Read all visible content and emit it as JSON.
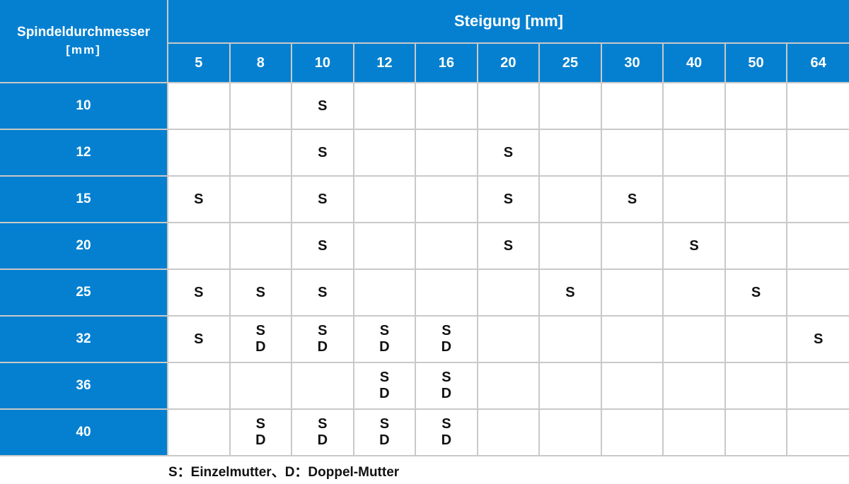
{
  "chart_data": {
    "type": "table",
    "col_group_title": "Steigung [mm]",
    "row_header_line1": "Spindeldurchmesser",
    "row_header_line2": "[mm]",
    "columns": [
      "5",
      "8",
      "10",
      "12",
      "16",
      "20",
      "25",
      "30",
      "40",
      "50",
      "64"
    ],
    "rows": [
      {
        "label": "10",
        "cells": [
          "",
          "",
          "S",
          "",
          "",
          "",
          "",
          "",
          "",
          "",
          ""
        ]
      },
      {
        "label": "12",
        "cells": [
          "",
          "",
          "S",
          "",
          "",
          "S",
          "",
          "",
          "",
          "",
          ""
        ]
      },
      {
        "label": "15",
        "cells": [
          "S",
          "",
          "S",
          "",
          "",
          "S",
          "",
          "S",
          "",
          "",
          ""
        ]
      },
      {
        "label": "20",
        "cells": [
          "",
          "",
          "S",
          "",
          "",
          "S",
          "",
          "",
          "S",
          "",
          ""
        ]
      },
      {
        "label": "25",
        "cells": [
          "S",
          "S",
          "S",
          "",
          "",
          "",
          "S",
          "",
          "",
          "S",
          ""
        ]
      },
      {
        "label": "32",
        "cells": [
          "S",
          "S\nD",
          "S\nD",
          "S\nD",
          "S\nD",
          "",
          "",
          "",
          "",
          "",
          "S"
        ]
      },
      {
        "label": "36",
        "cells": [
          "",
          "",
          "",
          "S\nD",
          "S\nD",
          "",
          "",
          "",
          "",
          "",
          ""
        ]
      },
      {
        "label": "40",
        "cells": [
          "",
          "S\nD",
          "S\nD",
          "S\nD",
          "S\nD",
          "",
          "",
          "",
          "",
          "",
          ""
        ]
      }
    ],
    "legend": "S：Einzelmutter、D：Doppel-Mutter",
    "legend_position": "bottom-left",
    "cell_codes": {
      "S": "Einzelmutter",
      "D": "Doppel-Mutter"
    }
  },
  "colors": {
    "header_blue": "#0580d0",
    "grid_gray": "#c9c9c9",
    "header_text": "#ffffff",
    "cell_text": "#111111"
  }
}
